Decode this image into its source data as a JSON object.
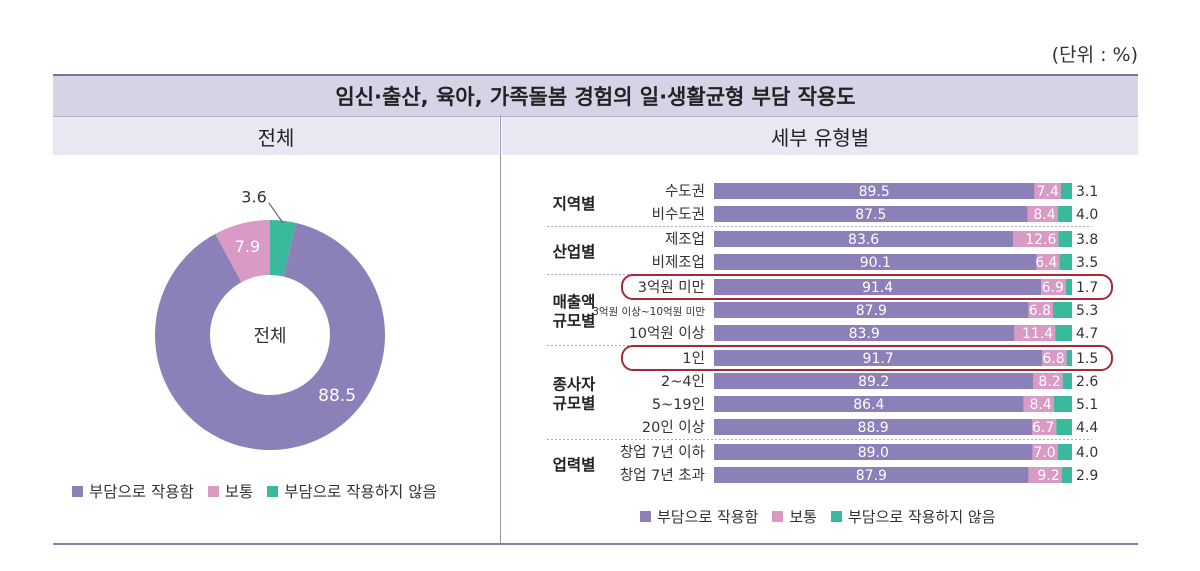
{
  "unit_label": "(단위 : %)",
  "title": "임신·출산, 육아, 가족돌봄 경험의 일·생활균형 부담 작용도",
  "left_header": "전체",
  "right_header": "세부 유형별",
  "colors": {
    "burden": "#8b80b7",
    "normal": "#d99ac6",
    "noburden": "#3bb99d"
  },
  "legend": [
    {
      "label": "부담으로 작용함",
      "color": "#8b80b7"
    },
    {
      "label": "보통",
      "color": "#d99ac6"
    },
    {
      "label": "부담으로 작용하지 않음",
      "color": "#3bb99d"
    }
  ],
  "chart_data": [
    {
      "type": "pie",
      "center_label": "전체",
      "series": [
        {
          "name": "부담으로 작용함",
          "value": 88.5
        },
        {
          "name": "보통",
          "value": 7.9
        },
        {
          "name": "부담으로 작용하지 않음",
          "value": 3.6
        }
      ]
    },
    {
      "type": "bar",
      "orientation": "horizontal",
      "stacked": true,
      "groups": [
        {
          "name": "지역별",
          "rows": [
            {
              "label": "수도권",
              "values": [
                89.5,
                7.4,
                3.1
              ]
            },
            {
              "label": "비수도권",
              "values": [
                87.5,
                8.4,
                4.0
              ]
            }
          ]
        },
        {
          "name": "산업별",
          "rows": [
            {
              "label": "제조업",
              "values": [
                83.6,
                12.6,
                3.8
              ]
            },
            {
              "label": "비제조업",
              "values": [
                90.1,
                6.4,
                3.5
              ]
            }
          ]
        },
        {
          "name": "매출액\n규모별",
          "rows": [
            {
              "label": "3억원 미만",
              "values": [
                91.4,
                6.9,
                1.7
              ],
              "highlight": true
            },
            {
              "label": "3억원 이상~10억원 미만",
              "values": [
                87.9,
                6.8,
                5.3
              ],
              "small": true
            },
            {
              "label": "10억원 이상",
              "values": [
                83.9,
                11.4,
                4.7
              ]
            }
          ]
        },
        {
          "name": "종사자\n규모별",
          "rows": [
            {
              "label": "1인",
              "values": [
                91.7,
                6.8,
                1.5
              ],
              "highlight": true
            },
            {
              "label": "2~4인",
              "values": [
                89.2,
                8.2,
                2.6
              ]
            },
            {
              "label": "5~19인",
              "values": [
                86.4,
                8.4,
                5.1
              ]
            },
            {
              "label": "20인 이상",
              "values": [
                88.9,
                6.7,
                4.4
              ]
            }
          ]
        },
        {
          "name": "업력별",
          "rows": [
            {
              "label": "창업 7년 이하",
              "values": [
                89.0,
                7.0,
                4.0
              ]
            },
            {
              "label": "창업 7년 초과",
              "values": [
                87.9,
                9.2,
                2.9
              ]
            }
          ]
        }
      ]
    }
  ]
}
